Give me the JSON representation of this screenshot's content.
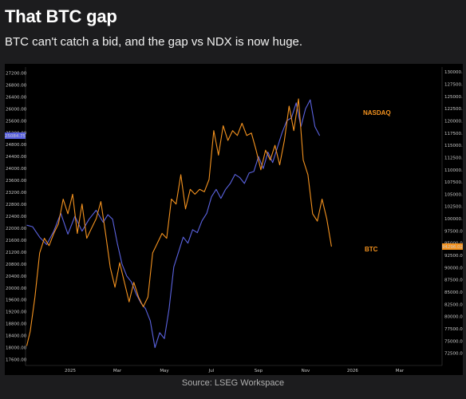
{
  "header": {
    "title": "That BTC gap",
    "subtitle": "BTC can't catch a bid, and the gap vs NDX is now huge."
  },
  "footer": {
    "source": "Source: LSEG Workspace"
  },
  "colors": {
    "background": "#000000",
    "nasdaq": "#5b63e0",
    "btc": "#f5931f",
    "axis_text": "#c8c8c8"
  },
  "chart_data": {
    "type": "line",
    "x_tick_labels": [
      "2025",
      "Mar",
      "May",
      "Jul",
      "Sep",
      "Nov",
      "2026",
      "Mar"
    ],
    "x_ticks": [
      0,
      2,
      4,
      6,
      8,
      10,
      12,
      14
    ],
    "xlim": [
      -1.9,
      15.8
    ],
    "left_axis": {
      "ylim": [
        17400,
        27400
      ],
      "ticks": [
        17600,
        18000,
        18400,
        18800,
        19200,
        19600,
        20000,
        20400,
        20800,
        21200,
        21600,
        22000,
        22400,
        22800,
        23200,
        23600,
        24000,
        24400,
        24800,
        25200,
        25600,
        26000,
        26400,
        26800,
        27200
      ],
      "tick_labels": [
        "17600.00",
        "18000.00",
        "18400.00",
        "18800.00",
        "19200.00",
        "19600.00",
        "20000.00",
        "20400.00",
        "20800.00",
        "21200.00",
        "21600.00",
        "22000.00",
        "22400.00",
        "22800.00",
        "23200.00",
        "23600.00",
        "24000.00",
        "24400.00",
        "24800.00",
        "25200.00",
        "25600.00",
        "26000.00",
        "26400.00",
        "26800.00",
        "27200.00"
      ],
      "last_value_label": "25084.75"
    },
    "right_axis": {
      "ylim": [
        70000,
        131000
      ],
      "ticks": [
        72500,
        75000,
        77500,
        80000,
        82500,
        85000,
        87500,
        90000,
        92500,
        95000,
        97500,
        100000,
        102500,
        105000,
        107500,
        110000,
        112500,
        115000,
        117500,
        120000,
        122500,
        125000,
        127500,
        130000
      ],
      "tick_labels": [
        "72500.00",
        "75000.00",
        "77500.00",
        "80000.00",
        "82500.00",
        "85000.00",
        "87500.00",
        "90000.00",
        "92500.00",
        "95000.00",
        "97500.00",
        "100000.00",
        "102500.00",
        "105000.00",
        "107500.00",
        "110000.00",
        "112500.00",
        "115000.00",
        "117500.00",
        "120000.00",
        "122500.00",
        "125000.00",
        "127500.00",
        "130000.00"
      ],
      "last_value_label": "94296.02"
    },
    "series": [
      {
        "name": "NASDAQ",
        "axis": "left",
        "x": [
          -1.85,
          -1.6,
          -1.3,
          -1.0,
          -0.7,
          -0.4,
          -0.1,
          0.2,
          0.5,
          0.8,
          1.1,
          1.4,
          1.6,
          1.8,
          2.0,
          2.2,
          2.4,
          2.6,
          2.8,
          3.0,
          3.2,
          3.4,
          3.6,
          3.8,
          4.0,
          4.2,
          4.4,
          4.6,
          4.8,
          5.0,
          5.2,
          5.4,
          5.6,
          5.8,
          6.0,
          6.2,
          6.4,
          6.6,
          6.8,
          7.0,
          7.2,
          7.4,
          7.6,
          7.8,
          8.0,
          8.2,
          8.4,
          8.6,
          8.8,
          9.0,
          9.2,
          9.4,
          9.6,
          9.8,
          10.0,
          10.2,
          10.4,
          10.6
        ],
        "y": [
          22100,
          22050,
          21700,
          21450,
          21900,
          22500,
          21800,
          22400,
          21900,
          22300,
          22600,
          22200,
          22450,
          22300,
          21500,
          20800,
          20400,
          20200,
          19800,
          19500,
          19300,
          18900,
          18000,
          18500,
          18300,
          19300,
          20700,
          21200,
          21700,
          21500,
          21950,
          21850,
          22250,
          22500,
          23050,
          23300,
          23000,
          23300,
          23500,
          23800,
          23700,
          23500,
          23850,
          23900,
          24400,
          24000,
          24550,
          24200,
          24700,
          25200,
          25600,
          25700,
          26200,
          25400,
          26000,
          26300,
          25400,
          25100
        ]
      },
      {
        "name": "BTC",
        "axis": "right",
        "x": [
          -1.85,
          -1.7,
          -1.5,
          -1.3,
          -1.1,
          -0.9,
          -0.7,
          -0.5,
          -0.3,
          -0.1,
          0.1,
          0.3,
          0.5,
          0.7,
          0.9,
          1.1,
          1.3,
          1.5,
          1.7,
          1.9,
          2.1,
          2.3,
          2.5,
          2.7,
          2.9,
          3.1,
          3.3,
          3.5,
          3.7,
          3.9,
          4.1,
          4.3,
          4.5,
          4.7,
          4.9,
          5.1,
          5.3,
          5.5,
          5.7,
          5.9,
          6.1,
          6.3,
          6.5,
          6.7,
          6.9,
          7.1,
          7.3,
          7.5,
          7.7,
          7.9,
          8.1,
          8.3,
          8.5,
          8.7,
          8.9,
          9.1,
          9.3,
          9.5,
          9.7,
          9.9,
          10.1,
          10.3,
          10.5,
          10.7,
          10.9,
          11.1
        ],
        "y": [
          74000,
          77000,
          84000,
          93000,
          96000,
          94500,
          97000,
          99000,
          104000,
          101000,
          105000,
          97000,
          103000,
          96000,
          98000,
          100000,
          103500,
          97000,
          90000,
          86000,
          91000,
          87000,
          83000,
          87000,
          84000,
          82000,
          84000,
          93000,
          95000,
          97000,
          96000,
          104000,
          103000,
          109000,
          102000,
          106000,
          105000,
          106000,
          105500,
          108000,
          118000,
          113000,
          119000,
          116000,
          118000,
          117000,
          119500,
          117000,
          117500,
          114000,
          110000,
          114000,
          112000,
          115000,
          111000,
          116000,
          123000,
          118000,
          124500,
          112000,
          109000,
          101000,
          99500,
          104000,
          100000,
          94300
        ]
      }
    ],
    "series_labels": [
      "NASDAQ",
      "BTC"
    ],
    "grid": false,
    "legend": "inline-right"
  }
}
